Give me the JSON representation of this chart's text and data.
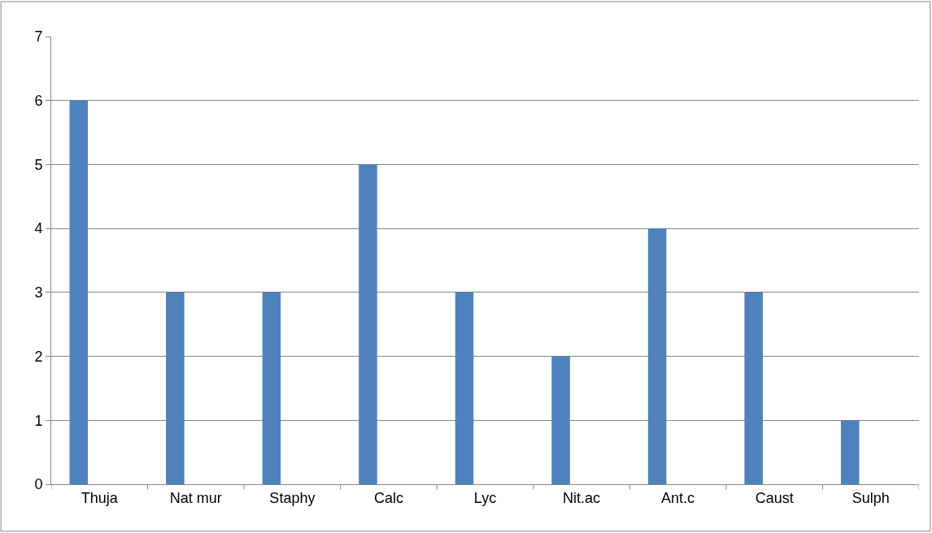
{
  "chart_data": {
    "type": "bar",
    "categories": [
      "Thuja",
      "Nat mur",
      "Staphy",
      "Calc",
      "Lyc",
      "Nit.ac",
      "Ant.c",
      "Caust",
      "Sulph"
    ],
    "values": [
      6,
      3,
      3,
      5,
      3,
      2,
      4,
      3,
      1
    ],
    "color": "#4f81bd",
    "ylim": [
      0,
      7
    ],
    "yticks": [
      0,
      1,
      2,
      3,
      4,
      5,
      6,
      7
    ],
    "grid": "y",
    "legend": false
  }
}
